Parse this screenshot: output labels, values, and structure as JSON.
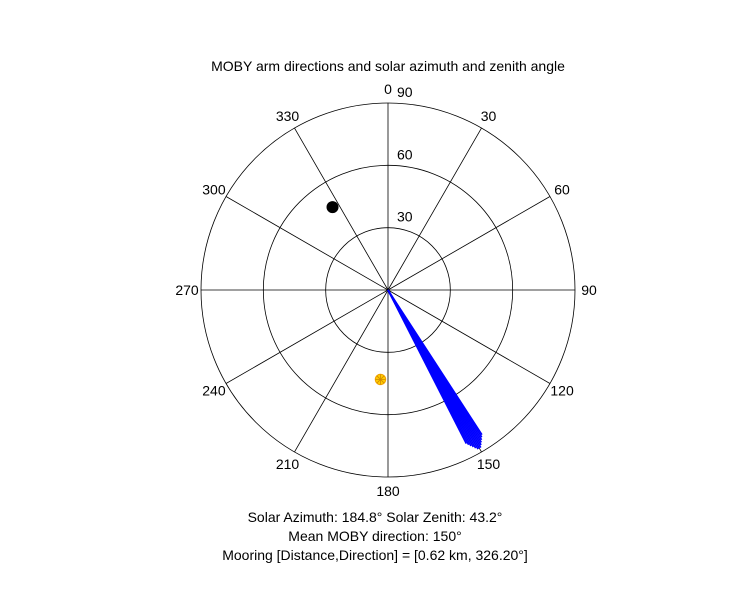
{
  "chart_data": {
    "type": "polar",
    "title": "MOBY arm directions and solar azimuth and zenith angle",
    "angle_ticks": [
      "0",
      "30",
      "60",
      "90",
      "120",
      "150",
      "180",
      "210",
      "240",
      "270",
      "300",
      "330"
    ],
    "angle_tick_values": [
      0,
      30,
      60,
      90,
      120,
      150,
      180,
      210,
      240,
      270,
      300,
      330
    ],
    "radial_ticks": [
      "30",
      "60",
      "90"
    ],
    "radial_tick_values": [
      30,
      60,
      90
    ],
    "rlim": [
      0,
      90
    ],
    "theta_zero": "top",
    "theta_direction": "clockwise",
    "grid": true,
    "arm_lines": {
      "name": "MOBY arm directions",
      "color": "#0000ff",
      "angles": [
        147.0,
        147.5,
        148.0,
        148.5,
        149.0,
        149.5,
        150.0,
        150.5,
        151.0,
        151.5,
        152.0,
        152.5,
        153.0
      ],
      "radii": [
        83,
        84,
        85,
        86,
        87,
        88,
        88,
        88,
        87,
        86,
        85,
        84,
        83
      ]
    },
    "sun": {
      "azimuth": 184.8,
      "zenith": 43.2,
      "color": "#ffcc00"
    },
    "mooring": {
      "direction": 326.2,
      "radius": 48,
      "color": "#000000"
    },
    "captions": {
      "solar": "Solar Azimuth: 184.8°    Solar Zenith: 43.2°",
      "mean": "Mean MOBY direction: 150°",
      "mooring": "Mooring [Distance,Direction] = [0.62 km, 326.20°]"
    }
  }
}
